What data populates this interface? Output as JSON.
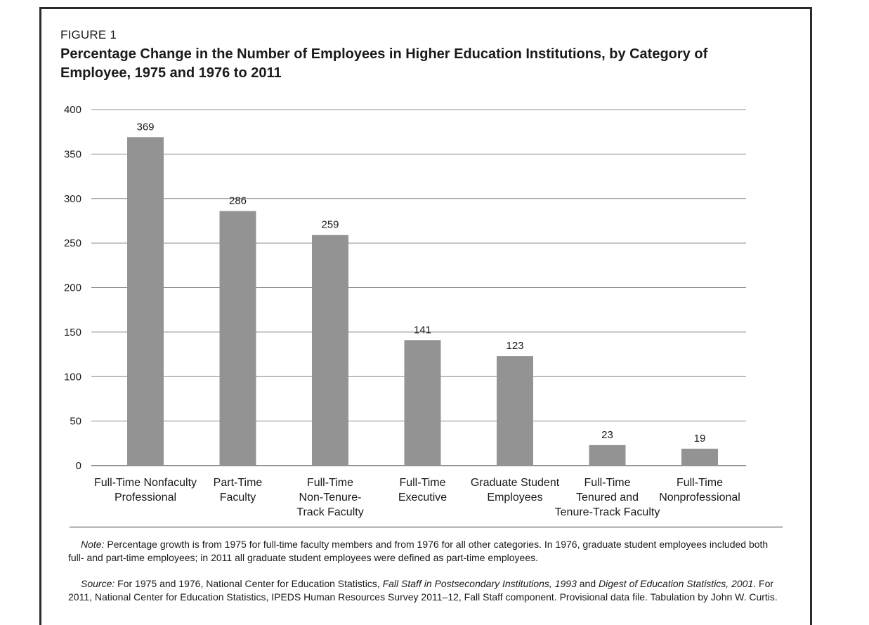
{
  "figure": {
    "label": "FIGURE 1",
    "title": "Percentage Change in the Number of Employees in Higher Education Institutions, by Category of Employee, 1975 and 1976 to 2011"
  },
  "chart_data": {
    "type": "bar",
    "title": "Percentage Change in the Number of Employees in Higher Education Institutions, by Category of Employee, 1975 and 1976 to 2011",
    "xlabel": "",
    "ylabel": "",
    "ylim": [
      0,
      400
    ],
    "yticks": [
      0,
      50,
      100,
      150,
      200,
      250,
      300,
      350,
      400
    ],
    "grid": true,
    "bar_color": "#939393",
    "categories": [
      [
        "Full-Time Nonfaculty",
        "Professional"
      ],
      [
        "Part-Time",
        "Faculty"
      ],
      [
        "Full-Time",
        "Non-Tenure-",
        "Track Faculty"
      ],
      [
        "Full-Time",
        "Executive"
      ],
      [
        "Graduate Student",
        "Employees"
      ],
      [
        "Full-Time",
        "Tenured and",
        "Tenure-Track Faculty"
      ],
      [
        "Full-Time",
        "Nonprofessional"
      ]
    ],
    "values": [
      369,
      286,
      259,
      141,
      123,
      23,
      19
    ]
  },
  "note": {
    "label": "Note:",
    "text": " Percentage growth is from 1975 for full-time faculty members and from 1976 for all other categories. In 1976, graduate student employees included both full- and part-time employees; in 2011 all graduate student employees were defined as part-time employees."
  },
  "source": {
    "label": "Source:",
    "part1": " For 1975 and 1976, National Center for Education Statistics, ",
    "title1": "Fall Staff in Postsecondary Institutions, 1993",
    "part2": " and ",
    "title2": "Digest of Education Statistics, 2001",
    "part3": ". For 2011, National Center for Education Statistics, IPEDS Human Resources Survey 2011–12, Fall Staff component. Provisional data file. Tabulation by John W. Curtis."
  }
}
